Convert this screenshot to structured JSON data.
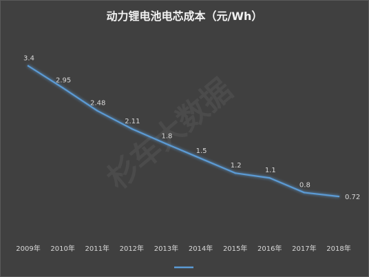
{
  "chart_data": {
    "type": "line",
    "title": "动力锂电池电芯成本（元/Wh）",
    "watermark": "杉车大数据",
    "categories": [
      "2009年",
      "2010年",
      "2011年",
      "2012年",
      "2013年",
      "2014年",
      "2015年",
      "2016年",
      "2017年",
      "2018年"
    ],
    "series": [
      {
        "values": [
          3.4,
          2.95,
          2.48,
          2.11,
          1.8,
          1.5,
          1.2,
          1.1,
          0.8,
          0.72
        ],
        "labels": [
          "3.4",
          "2.95",
          "2.48",
          "2.11",
          "1.8",
          "1.5",
          "1.2",
          "1.1",
          "0.8",
          "0.72"
        ],
        "color": "#5b9bd5"
      }
    ],
    "ylim": [
      0,
      4.4
    ],
    "grid": false,
    "legend": "bottom",
    "colors": {
      "background": "#404040",
      "line": "#5b9bd5",
      "text": "#d9d9d9"
    }
  }
}
